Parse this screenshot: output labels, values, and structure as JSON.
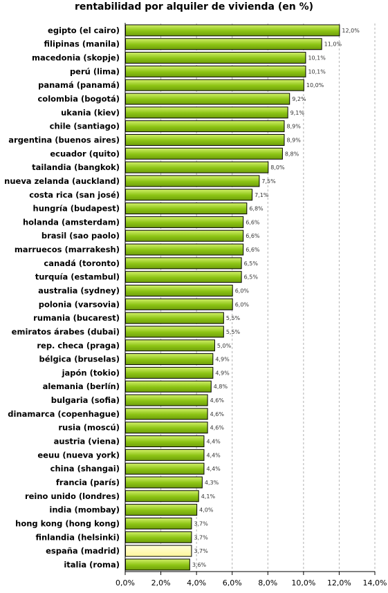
{
  "chart_data": {
    "type": "bar",
    "orientation": "horizontal",
    "title": "rentabilidad por alquiler de vivienda (en %)",
    "categories": [
      "egipto (el cairo)",
      "filipinas (manila)",
      "macedonia (skopje)",
      "perú (lima)",
      "panamá (panamá)",
      "colombia (bogotá)",
      "ukania (kiev)",
      "chile (santiago)",
      "argentina (buenos aires)",
      "ecuador (quito)",
      "tailandia (bangkok)",
      "nueva zelanda (auckland)",
      "costa rica (san josé)",
      "hungría (budapest)",
      "holanda (amsterdam)",
      "brasil (sao paolo)",
      "marruecos (marrakesh)",
      "canadá (toronto)",
      "turquía (estambul)",
      "australia (sydney)",
      "polonia (varsovia)",
      "rumania (bucarest)",
      "emiratos árabes (dubai)",
      "rep. checa (praga)",
      "bélgica (bruselas)",
      "japón (tokio)",
      "alemania (berlín)",
      "bulgaria (sofia)",
      "dinamarca (copenhague)",
      "rusia (moscú)",
      "austria (viena)",
      "eeuu (nueva york)",
      "china (shangai)",
      "francia (parís)",
      "reino unido (londres)",
      "india (mombay)",
      "hong kong (hong kong)",
      "finlandia (helsinki)",
      "españa (madrid)",
      "italia (roma)"
    ],
    "values": [
      12.0,
      11.0,
      10.1,
      10.1,
      10.0,
      9.2,
      9.1,
      8.9,
      8.9,
      8.8,
      8.0,
      7.5,
      7.1,
      6.8,
      6.6,
      6.6,
      6.6,
      6.5,
      6.5,
      6.0,
      6.0,
      5.5,
      5.5,
      5.0,
      4.9,
      4.9,
      4.8,
      4.6,
      4.6,
      4.6,
      4.4,
      4.4,
      4.4,
      4.3,
      4.1,
      4.0,
      3.7,
      3.7,
      3.7,
      3.6
    ],
    "value_labels": [
      "12,0%",
      "11,0%",
      "10,1%",
      "10,1%",
      "10,0%",
      "9,2%",
      "9,1%",
      "8,9%",
      "8,9%",
      "8,8%",
      "8,0%",
      "7,5%",
      "7,1%",
      "6,8%",
      "6,6%",
      "6,6%",
      "6,6%",
      "6,5%",
      "6,5%",
      "6,0%",
      "6,0%",
      "5,5%",
      "5,5%",
      "5,0%",
      "4,9%",
      "4,9%",
      "4,8%",
      "4,6%",
      "4,6%",
      "4,6%",
      "4,4%",
      "4,4%",
      "4,4%",
      "4,3%",
      "4,1%",
      "4,0%",
      "3,7%",
      "3,7%",
      "3,7%",
      "3,6%"
    ],
    "xlim": [
      0,
      14
    ],
    "x_ticks": [
      0,
      2,
      4,
      6,
      8,
      10,
      12,
      14
    ],
    "x_tick_labels": [
      "0,0%",
      "2,0%",
      "4,0%",
      "6,0%",
      "8,0%",
      "10,0%",
      "12,0%",
      "14,0%"
    ],
    "xlabel": "",
    "ylabel": "",
    "grid": "vertical dashed",
    "colors": {
      "bar": "#8cc414",
      "bar_highlight": "#ffffa0",
      "bar_border": "#000000",
      "grid": "#b0b0b0"
    },
    "highlight_category": "españa (madrid)"
  }
}
